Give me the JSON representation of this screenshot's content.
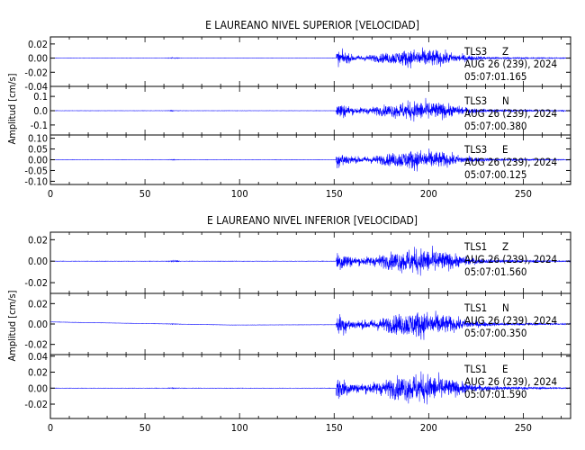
{
  "chart_data": [
    {
      "type": "line",
      "title": "E LAUREANO NIVEL SUPERIOR [VELOCIDAD]",
      "ylabel": "Amplitud [cm/s]",
      "xlim": [
        0,
        275
      ],
      "x_ticks": [
        "0",
        "50",
        "100",
        "150",
        "200",
        "250"
      ],
      "grid": false,
      "series_color": "#0000ff",
      "panels": [
        {
          "name": "TLS3 Z",
          "station": "TLS3",
          "component": "Z",
          "date_line": "AUG 26 (239), 2024",
          "time": "05:07:01.165",
          "ylim": [
            -0.04,
            0.03
          ],
          "y_ticks": [
            "0.02",
            "0.00",
            "-0.02",
            "-0.04"
          ],
          "y_tick_values": [
            0.02,
            0.0,
            -0.02,
            -0.04
          ],
          "pre_event_noise": 0.0004,
          "small_burst": {
            "x": 65,
            "amp": 0.002
          },
          "onset_x": 151,
          "peak_amplitude": 0.028,
          "coda_decay_x": 275
        },
        {
          "name": "TLS3 N",
          "station": "TLS3",
          "component": "N",
          "date_line": "AUG 26 (239), 2024",
          "time": "05:07:00.380",
          "ylim": [
            -0.17,
            0.17
          ],
          "y_ticks": [
            "0.1",
            "0.0",
            "-0.1"
          ],
          "y_tick_values": [
            0.1,
            0.0,
            -0.1
          ],
          "pre_event_noise": 0.002,
          "small_burst": {
            "x": 65,
            "amp": 0.006
          },
          "onset_x": 151,
          "peak_amplitude": 0.15,
          "coda_decay_x": 275
        },
        {
          "name": "TLS3 E",
          "station": "TLS3",
          "component": "E",
          "date_line": "AUG 26 (239), 2024",
          "time": "05:07:00.125",
          "ylim": [
            -0.115,
            0.115
          ],
          "y_ticks": [
            "0.10",
            "0.05",
            "0.00",
            "-0.05",
            "-0.10"
          ],
          "y_tick_values": [
            0.1,
            0.05,
            0.0,
            -0.05,
            -0.1
          ],
          "pre_event_noise": 0.0015,
          "small_burst": {
            "x": 65,
            "amp": 0.004
          },
          "onset_x": 151,
          "peak_amplitude": 0.1,
          "coda_decay_x": 275
        }
      ]
    },
    {
      "type": "line",
      "title": "E LAUREANO NIVEL INFERIOR [VELOCIDAD]",
      "ylabel": "Amplitud [cm/s]",
      "xlim": [
        0,
        275
      ],
      "x_ticks": [
        "0",
        "50",
        "100",
        "150",
        "200",
        "250"
      ],
      "grid": false,
      "series_color": "#0000ff",
      "panels": [
        {
          "name": "TLS1 Z",
          "station": "TLS1",
          "component": "Z",
          "date_line": "AUG 26 (239), 2024",
          "time": "05:07:01.560",
          "ylim": [
            -0.03,
            0.027
          ],
          "y_ticks": [
            "0.02",
            "0.00",
            "-0.02"
          ],
          "y_tick_values": [
            0.02,
            0.0,
            -0.02
          ],
          "pre_event_noise": 0.0004,
          "small_burst": {
            "x": 65,
            "amp": 0.0015
          },
          "onset_x": 151,
          "peak_amplitude": 0.026,
          "coda_decay_x": 275
        },
        {
          "name": "TLS1 N",
          "station": "TLS1",
          "component": "N",
          "date_line": "AUG 26 (239), 2024",
          "time": "05:07:00.350",
          "ylim": [
            -0.03,
            0.03
          ],
          "y_ticks": [
            "0.02",
            "0.00",
            "-0.02"
          ],
          "y_tick_values": [
            0.02,
            0.0,
            -0.02
          ],
          "pre_event_noise": 0.0003,
          "small_burst": {
            "x": 65,
            "amp": 0.0008
          },
          "onset_x": 151,
          "peak_amplitude": 0.028,
          "coda_decay_x": 275,
          "baseline_drift": {
            "start": 0.002,
            "mid": -0.001,
            "end": 0.0
          }
        },
        {
          "name": "TLS1 E",
          "station": "TLS1",
          "component": "E",
          "date_line": "AUG 26 (239), 2024",
          "time": "05:07:01.590",
          "ylim": [
            -0.038,
            0.042
          ],
          "y_ticks": [
            "0.04",
            "0.02",
            "0.00",
            "-0.02"
          ],
          "y_tick_values": [
            0.04,
            0.02,
            0.0,
            -0.02
          ],
          "pre_event_noise": 0.0005,
          "small_burst": {
            "x": 65,
            "amp": 0.001
          },
          "onset_x": 151,
          "peak_amplitude": 0.04,
          "coda_decay_x": 275
        }
      ]
    }
  ]
}
